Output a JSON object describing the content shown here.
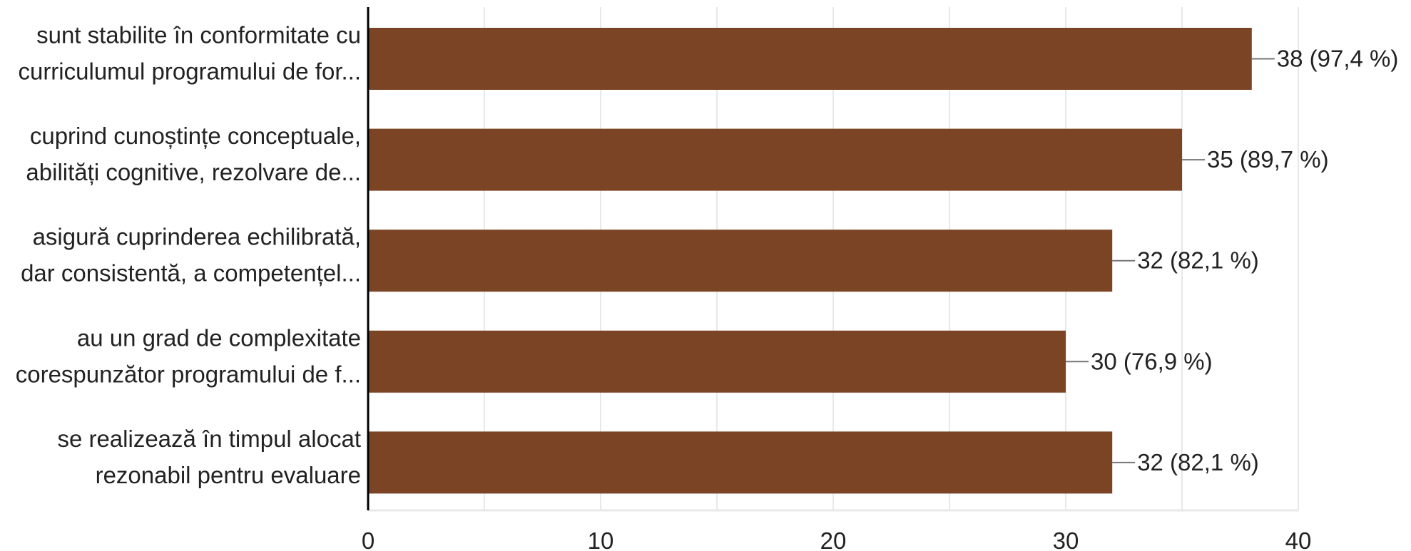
{
  "chart_data": {
    "type": "bar",
    "orientation": "horizontal",
    "categories": [
      [
        "sunt stabilite în conformitate cu",
        "curriculumul programului de for..."
      ],
      [
        "cuprind cunoștințe conceptuale,",
        "abilități cognitive, rezolvare de..."
      ],
      [
        "asigură cuprinderea echilibrată,",
        "dar consistentă, a competențel..."
      ],
      [
        "au un grad de complexitate",
        "corespunzător programului de f..."
      ],
      [
        "se realizează în timpul alocat",
        "rezonabil pentru evaluare"
      ]
    ],
    "values": [
      38,
      35,
      32,
      30,
      32
    ],
    "data_labels": [
      "38 (97,4 %)",
      "35 (89,7 %)",
      "32 (82,1 %)",
      "30 (76,9 %)",
      "32 (82,1 %)"
    ],
    "xlim": [
      0,
      40
    ],
    "x_ticks": [
      0,
      10,
      20,
      30,
      40
    ],
    "minor_grid": true,
    "grid": true,
    "bar_color": "#7b4425",
    "grid_color": "#e8e8e8",
    "axis_color": "#000000",
    "leader_color": "#777777"
  }
}
